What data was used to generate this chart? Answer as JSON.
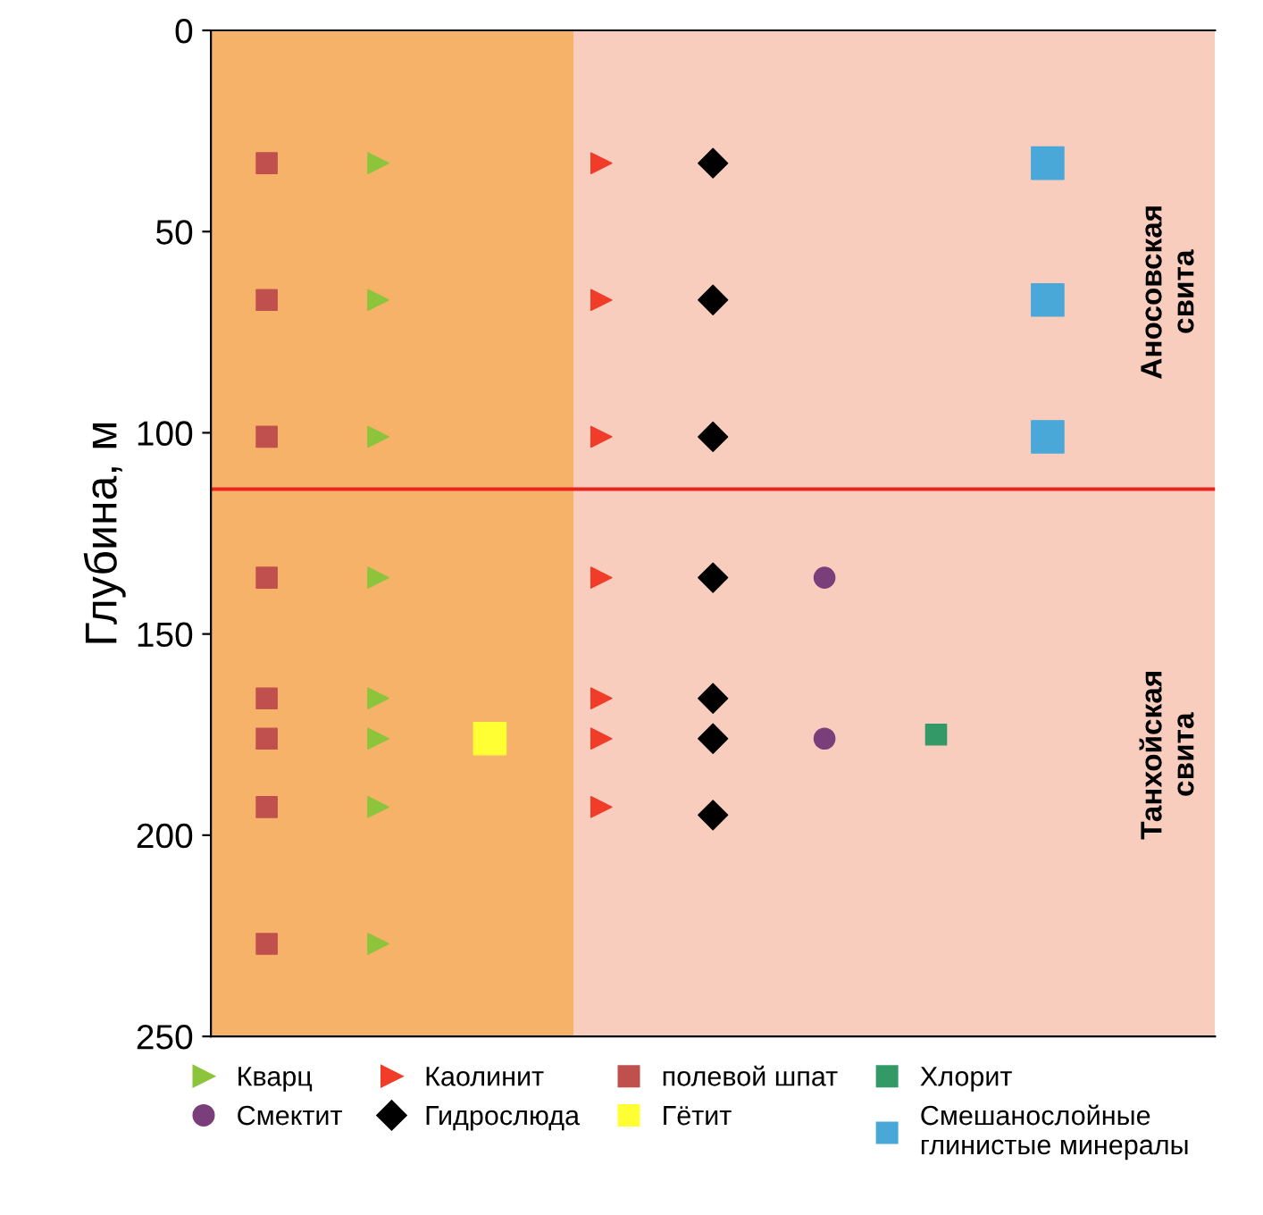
{
  "chart_data": {
    "type": "scatter",
    "ylabel": "Глубина, м",
    "categories": [
      null,
      null,
      null,
      null,
      null,
      null,
      null,
      null,
      null
    ],
    "ylim": [
      250,
      0
    ],
    "yticks": [
      0,
      50,
      100,
      150,
      200,
      250
    ],
    "grid": false,
    "legend": "bottom",
    "series": [
      {
        "name": "Кварц",
        "color": "#8cc43c",
        "marker": "triangle",
        "values": [
          null,
          33,
          null,
          null,
          null,
          null,
          null,
          null,
          null
        ]
      },
      {
        "color": "#8cc43c",
        "marker": "triangle",
        "values": [
          null,
          67,
          null,
          null,
          null,
          null,
          null,
          null,
          null
        ]
      },
      {
        "color": "#8cc43c",
        "marker": "triangle",
        "values": [
          null,
          101,
          null,
          null,
          null,
          null,
          null,
          null,
          null
        ]
      },
      {
        "color": "#8cc43c",
        "marker": "triangle",
        "values": [
          null,
          136,
          null,
          null,
          null,
          null,
          null,
          null,
          null
        ]
      },
      {
        "color": "#8cc43c",
        "marker": "triangle",
        "values": [
          null,
          166,
          null,
          null,
          null,
          null,
          null,
          null,
          null
        ]
      },
      {
        "color": "#8cc43c",
        "marker": "triangle",
        "values": [
          null,
          176,
          null,
          null,
          null,
          null,
          null,
          null,
          null
        ]
      },
      {
        "color": "#8cc43c",
        "marker": "triangle",
        "values": [
          null,
          193,
          null,
          null,
          null,
          null,
          null,
          null,
          null
        ]
      },
      {
        "color": "#8cc43c",
        "marker": "triangle",
        "values": [
          null,
          227,
          null,
          null,
          null,
          null,
          null,
          null,
          null
        ]
      },
      {
        "name": "Каолинит",
        "color": "#f03c28",
        "marker": "triangle",
        "values": [
          null,
          null,
          null,
          33,
          null,
          null,
          null,
          null,
          null
        ]
      },
      {
        "color": "#f03c28",
        "marker": "triangle",
        "values": [
          null,
          null,
          null,
          67,
          null,
          null,
          null,
          null,
          null
        ]
      },
      {
        "color": "#f03c28",
        "marker": "triangle",
        "values": [
          null,
          null,
          null,
          101,
          null,
          null,
          null,
          null,
          null
        ]
      },
      {
        "color": "#f03c28",
        "marker": "triangle",
        "values": [
          null,
          null,
          null,
          136,
          null,
          null,
          null,
          null,
          null
        ]
      },
      {
        "color": "#f03c28",
        "marker": "triangle",
        "values": [
          null,
          null,
          null,
          166,
          null,
          null,
          null,
          null,
          null
        ]
      },
      {
        "color": "#f03c28",
        "marker": "triangle",
        "values": [
          null,
          null,
          null,
          176,
          null,
          null,
          null,
          null,
          null
        ]
      },
      {
        "color": "#f03c28",
        "marker": "triangle",
        "values": [
          null,
          null,
          null,
          193,
          null,
          null,
          null,
          null,
          null
        ]
      },
      {
        "name": "полевой шпат",
        "color": "#c0504d",
        "marker": "square",
        "values": [
          33,
          null,
          null,
          null,
          null,
          null,
          null,
          null,
          null
        ]
      },
      {
        "color": "#c0504d",
        "marker": "square",
        "values": [
          67,
          null,
          null,
          null,
          null,
          null,
          null,
          null,
          null
        ]
      },
      {
        "color": "#c0504d",
        "marker": "square",
        "values": [
          101,
          null,
          null,
          null,
          null,
          null,
          null,
          null,
          null
        ]
      },
      {
        "color": "#c0504d",
        "marker": "square",
        "values": [
          136,
          null,
          null,
          null,
          null,
          null,
          null,
          null,
          null
        ]
      },
      {
        "color": "#c0504d",
        "marker": "square",
        "values": [
          166,
          null,
          null,
          null,
          null,
          null,
          null,
          null,
          null
        ]
      },
      {
        "color": "#c0504d",
        "marker": "square",
        "values": [
          176,
          null,
          null,
          null,
          null,
          null,
          null,
          null,
          null
        ]
      },
      {
        "color": "#c0504d",
        "marker": "square",
        "values": [
          193,
          null,
          null,
          null,
          null,
          null,
          null,
          null,
          null
        ]
      },
      {
        "color": "#c0504d",
        "marker": "square",
        "values": [
          227,
          null,
          null,
          null,
          null,
          null,
          null,
          null,
          null
        ]
      },
      {
        "name": "Хлорит",
        "color": "#339966",
        "marker": "square",
        "values": [
          null,
          null,
          null,
          null,
          null,
          null,
          175,
          null,
          null
        ]
      },
      {
        "name": "Смектит",
        "color": "#7a3f7a",
        "marker": "circle",
        "values": [
          null,
          null,
          null,
          null,
          null,
          136,
          null,
          null,
          null
        ]
      },
      {
        "color": "#7a3f7a",
        "marker": "circle",
        "values": [
          null,
          null,
          null,
          null,
          null,
          176,
          null,
          null,
          null
        ]
      },
      {
        "name": "Гидрослюда",
        "color": "#000000",
        "marker": "diamond",
        "values": [
          null,
          null,
          null,
          null,
          33,
          null,
          null,
          null,
          null
        ]
      },
      {
        "color": "#000000",
        "marker": "diamond",
        "values": [
          null,
          null,
          null,
          null,
          67,
          null,
          null,
          null,
          null
        ]
      },
      {
        "color": "#000000",
        "marker": "diamond",
        "values": [
          null,
          null,
          null,
          null,
          101,
          null,
          null,
          null,
          null
        ]
      },
      {
        "color": "#000000",
        "marker": "diamond",
        "values": [
          null,
          null,
          null,
          null,
          136,
          null,
          null,
          null,
          null
        ]
      },
      {
        "color": "#000000",
        "marker": "diamond",
        "values": [
          null,
          null,
          null,
          null,
          166,
          null,
          null,
          null,
          null
        ]
      },
      {
        "color": "#000000",
        "marker": "diamond",
        "values": [
          null,
          null,
          null,
          null,
          176,
          null,
          null,
          null,
          null
        ]
      },
      {
        "color": "#000000",
        "marker": "diamond",
        "values": [
          null,
          null,
          null,
          null,
          195,
          null,
          null,
          null,
          null
        ]
      },
      {
        "name": "Гётит",
        "color": "#ffff33",
        "marker": "square",
        "values": [
          null,
          null,
          176,
          null,
          null,
          null,
          null,
          null,
          null
        ]
      },
      {
        "name": "Смешанослойные\nглинистые минералы",
        "color": "#4aa8d8",
        "marker": "square",
        "values": [
          null,
          null,
          null,
          null,
          null,
          null,
          null,
          33,
          null
        ]
      },
      {
        "color": "#4aa8d8",
        "marker": "square",
        "values": [
          null,
          null,
          null,
          null,
          null,
          null,
          null,
          67,
          null
        ]
      },
      {
        "color": "#4aa8d8",
        "marker": "square",
        "values": [
          null,
          null,
          null,
          null,
          null,
          null,
          null,
          101,
          null
        ]
      }
    ],
    "ref_lines": [
      {
        "axis": "y",
        "value": 114,
        "color": "#e8261f",
        "line_style": "solid"
      }
    ],
    "annotations": [
      "Аносовская\nсвита",
      "Танхойская\nсвита"
    ]
  }
}
